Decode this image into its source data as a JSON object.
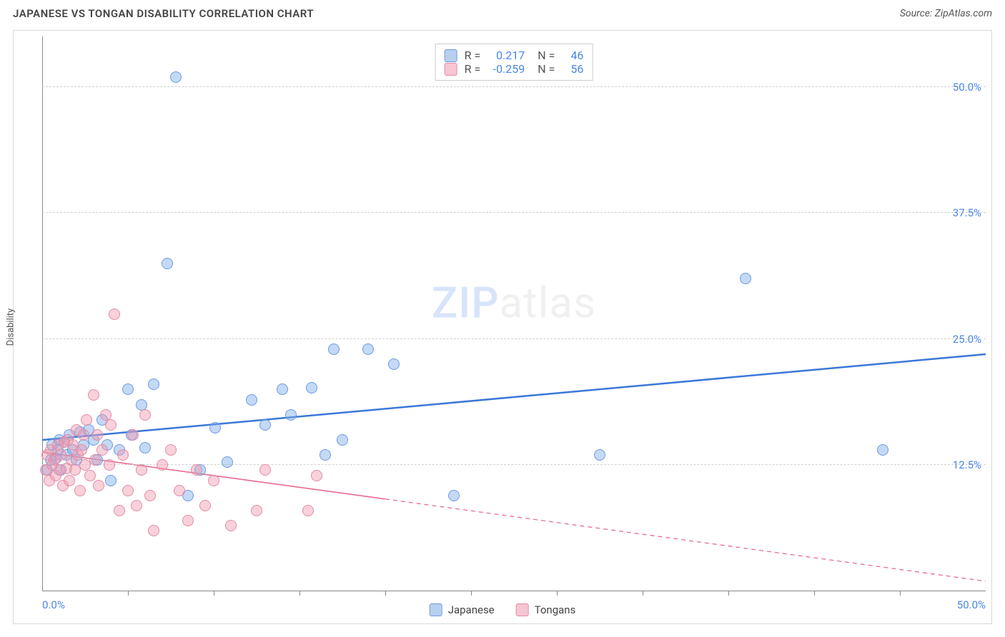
{
  "title": "JAPANESE VS TONGAN DISABILITY CORRELATION CHART",
  "source": "Source: ZipAtlas.com",
  "ylabel": "Disability",
  "watermark_a": "ZIP",
  "watermark_b": "atlas",
  "chart": {
    "type": "scatter",
    "xlim": [
      0,
      55
    ],
    "ylim": [
      0,
      55
    ],
    "y_ticks": [
      12.5,
      25.0,
      37.5,
      50.0
    ],
    "y_tick_labels": [
      "12.5%",
      "25.0%",
      "37.5%",
      "50.0%"
    ],
    "x_ticks": [
      5,
      10,
      15,
      20,
      25,
      30,
      35,
      40,
      45,
      50
    ],
    "x_corner_min": "0.0%",
    "x_corner_max": "50.0%",
    "grid_color": "#d0d0d0",
    "background_color": "#ffffff",
    "marker_radius": 8,
    "marker_border_width": 1.3,
    "series": [
      {
        "name": "Japanese",
        "fill": "rgba(124,171,232,0.45)",
        "stroke": "#6c9be0",
        "legend_fill": "#b8d0ef",
        "legend_stroke": "#6c9be0",
        "trend": {
          "y_at_x0": 15.0,
          "y_at_x55": 23.5,
          "color": "#3b78d8",
          "width": 2.5,
          "solid_to_x": 55
        },
        "R": "0.217",
        "N": "46",
        "points": [
          [
            0.3,
            12.0
          ],
          [
            0.5,
            13.0
          ],
          [
            0.6,
            14.5
          ],
          [
            0.8,
            13.2
          ],
          [
            0.9,
            14.0
          ],
          [
            1.0,
            15.0
          ],
          [
            1.1,
            12.0
          ],
          [
            1.3,
            14.8
          ],
          [
            1.4,
            13.5
          ],
          [
            1.6,
            15.5
          ],
          [
            1.8,
            14.0
          ],
          [
            2.0,
            13.0
          ],
          [
            2.2,
            15.8
          ],
          [
            2.4,
            14.5
          ],
          [
            2.7,
            16.0
          ],
          [
            3.0,
            15.0
          ],
          [
            3.2,
            13.0
          ],
          [
            3.5,
            17.0
          ],
          [
            3.8,
            14.5
          ],
          [
            4.0,
            11.0
          ],
          [
            4.5,
            14.0
          ],
          [
            5.0,
            20.0
          ],
          [
            5.2,
            15.5
          ],
          [
            5.8,
            18.5
          ],
          [
            6.0,
            14.2
          ],
          [
            6.5,
            20.5
          ],
          [
            7.3,
            32.5
          ],
          [
            7.8,
            51.0
          ],
          [
            8.5,
            9.5
          ],
          [
            9.2,
            12.0
          ],
          [
            10.1,
            16.2
          ],
          [
            10.8,
            12.8
          ],
          [
            12.2,
            19.0
          ],
          [
            13.0,
            16.5
          ],
          [
            14.0,
            20.0
          ],
          [
            14.5,
            17.5
          ],
          [
            15.7,
            20.2
          ],
          [
            16.5,
            13.5
          ],
          [
            17.0,
            24.0
          ],
          [
            17.5,
            15.0
          ],
          [
            19.0,
            24.0
          ],
          [
            20.5,
            22.5
          ],
          [
            24.0,
            9.5
          ],
          [
            32.5,
            13.5
          ],
          [
            41.0,
            31.0
          ],
          [
            49.0,
            14.0
          ]
        ]
      },
      {
        "name": "Tongans",
        "fill": "rgba(240,154,176,0.45)",
        "stroke": "#e28ca4",
        "legend_fill": "#f6c6d3",
        "legend_stroke": "#e28ca4",
        "trend": {
          "y_at_x0": 13.8,
          "y_at_x55": 1.0,
          "color": "#e86a8f",
          "width": 1.6,
          "solid_to_x": 20
        },
        "R": "-0.259",
        "N": "56",
        "points": [
          [
            0.2,
            12.0
          ],
          [
            0.3,
            13.5
          ],
          [
            0.4,
            11.0
          ],
          [
            0.5,
            14.0
          ],
          [
            0.6,
            12.5
          ],
          [
            0.7,
            13.0
          ],
          [
            0.8,
            11.5
          ],
          [
            0.9,
            14.5
          ],
          [
            1.0,
            12.0
          ],
          [
            1.1,
            13.5
          ],
          [
            1.2,
            10.5
          ],
          [
            1.3,
            14.8
          ],
          [
            1.4,
            12.2
          ],
          [
            1.5,
            15.0
          ],
          [
            1.6,
            11.0
          ],
          [
            1.7,
            13.0
          ],
          [
            1.8,
            14.5
          ],
          [
            1.9,
            12.0
          ],
          [
            2.0,
            16.0
          ],
          [
            2.1,
            13.5
          ],
          [
            2.2,
            10.0
          ],
          [
            2.3,
            14.0
          ],
          [
            2.4,
            15.5
          ],
          [
            2.5,
            12.5
          ],
          [
            2.6,
            17.0
          ],
          [
            2.8,
            11.5
          ],
          [
            3.0,
            19.5
          ],
          [
            3.1,
            13.0
          ],
          [
            3.2,
            15.5
          ],
          [
            3.3,
            10.5
          ],
          [
            3.5,
            14.0
          ],
          [
            3.7,
            17.5
          ],
          [
            3.9,
            12.5
          ],
          [
            4.0,
            16.5
          ],
          [
            4.2,
            27.5
          ],
          [
            4.5,
            8.0
          ],
          [
            4.7,
            13.5
          ],
          [
            5.0,
            10.0
          ],
          [
            5.3,
            15.5
          ],
          [
            5.5,
            8.5
          ],
          [
            5.8,
            12.0
          ],
          [
            6.0,
            17.5
          ],
          [
            6.3,
            9.5
          ],
          [
            6.5,
            6.0
          ],
          [
            7.0,
            12.5
          ],
          [
            7.5,
            14.0
          ],
          [
            8.0,
            10.0
          ],
          [
            8.5,
            7.0
          ],
          [
            9.0,
            12.0
          ],
          [
            9.5,
            8.5
          ],
          [
            10.0,
            11.0
          ],
          [
            11.0,
            6.5
          ],
          [
            12.5,
            8.0
          ],
          [
            13.0,
            12.0
          ],
          [
            15.5,
            8.0
          ],
          [
            16.0,
            11.5
          ]
        ]
      }
    ],
    "legend_bottom": [
      {
        "label": "Japanese",
        "series_idx": 0
      },
      {
        "label": "Tongans",
        "series_idx": 1
      }
    ]
  }
}
